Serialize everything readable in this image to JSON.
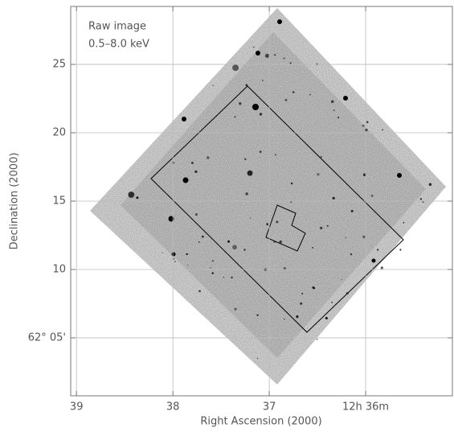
{
  "chart_data": {
    "type": "image",
    "annotations": [
      "Raw image",
      "0.5–8.0 keV"
    ],
    "xlabel": "Right Ascension (2000)",
    "ylabel": "Declination (2000)",
    "xlim": [
      39.06,
      35.1
    ],
    "xticks": [
      39,
      38,
      37,
      {
        "value": 36,
        "label": "12h 36m"
      }
    ],
    "ylim": [
      0.76,
      29.24
    ],
    "yticks": [
      25,
      20,
      15,
      10,
      {
        "value": 5,
        "label": "62° 05'"
      }
    ],
    "grid": true
  }
}
